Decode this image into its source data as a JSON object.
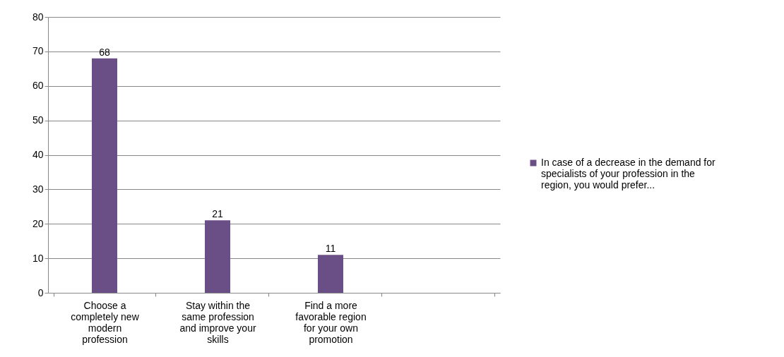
{
  "chart_data": {
    "type": "bar",
    "categories": [
      "Choose a completely new modern profession",
      "Stay within the same profession and improve your skills",
      "Find a more favorable region for your own promotion",
      null
    ],
    "series": [
      {
        "name": "In case of a decrease in the demand for specialists of your profession in the region, you would prefer...",
        "color": "#6a4f86",
        "values": [
          68,
          21,
          11,
          null
        ]
      }
    ],
    "ylim": [
      0,
      80
    ],
    "yticks": [
      0,
      10,
      20,
      30,
      40,
      50,
      60,
      70,
      80
    ],
    "grid": "y",
    "legend": "right",
    "data_labels": true
  }
}
